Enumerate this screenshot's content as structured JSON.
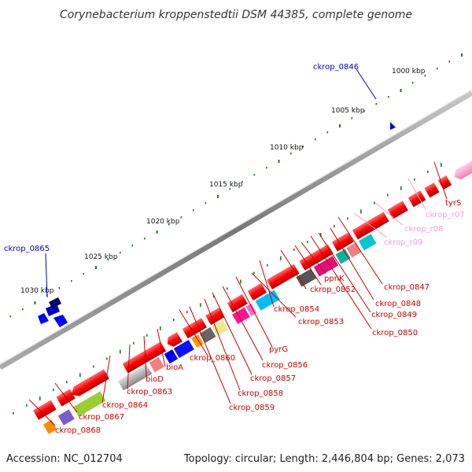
{
  "title": "Corynebacterium kroppenstedtii DSM 44385, complete genome",
  "footer": {
    "accession": "Accession: NC_012704",
    "summary": "Topology: circular; Length: 2,446,804 bp; Genes: 2,073"
  },
  "kbp_labels": [
    "1000 kbp",
    "1005 kbp",
    "1010 kbp",
    "1015 kbp",
    "1020 kbp",
    "1025 kbp",
    "1030 kbp"
  ],
  "gene_labels": [
    "ckrop_0846",
    "ckrop_0865",
    "tyrS",
    "ckrop_r07",
    "ckrop_r08",
    "ckrop_r09",
    "ppnK",
    "ckrop_0852",
    "ckrop_0847",
    "ckrop_0848",
    "ckrop_0849",
    "ckrop_0850",
    "ckrop_0854",
    "ckrop_0853",
    "pyrG",
    "ckrop_0856",
    "ckrop_0857",
    "ckrop_0858",
    "ckrop_0859",
    "ckrop_0860",
    "bioA",
    "bioD",
    "ckrop_0863",
    "ckrop_0864",
    "ckrop_0867",
    "ckrop_0868"
  ],
  "colors": {
    "cds": "#ff0000",
    "rrna": "#ff99cc",
    "highlight": "#0000cc",
    "tick": "#1e7a1e",
    "backbone": "#808080"
  }
}
